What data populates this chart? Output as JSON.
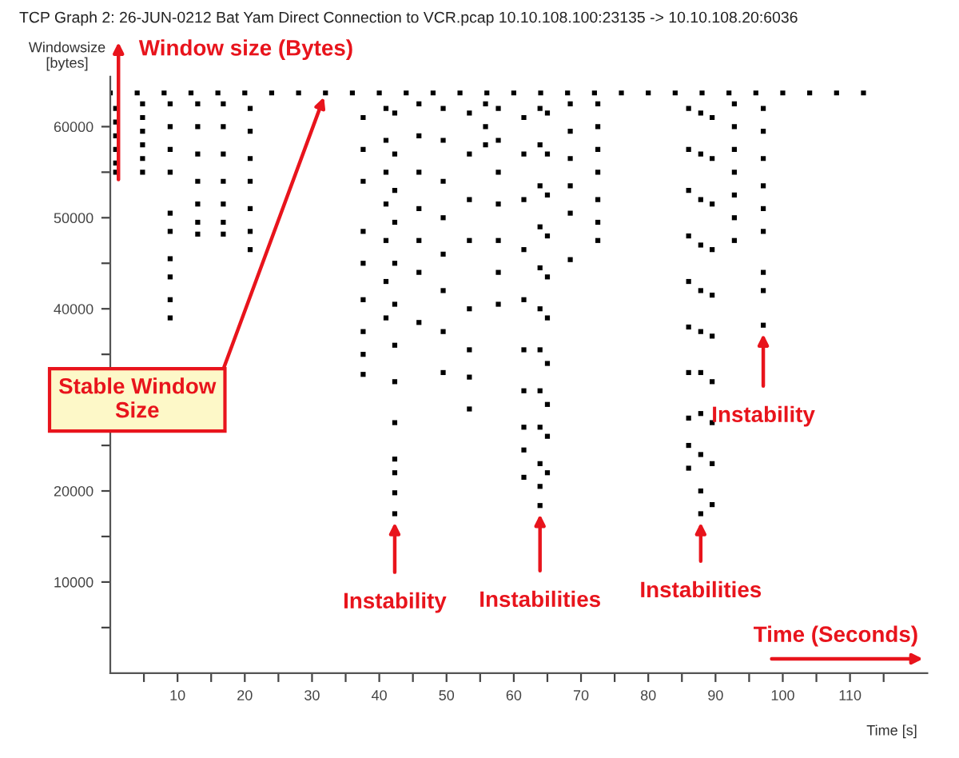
{
  "chart_data": {
    "type": "scatter",
    "title": "TCP Graph 2: 26-JUN-0212 Bat Yam Direct Connection to VCR.pcap 10.10.108.100:23135 -> 10.10.108.20:6036",
    "xlabel": "Time [s]",
    "ylabel": "Windowsize\n[bytes]",
    "series": [
      {
        "color": "#000000",
        "x": [
          0,
          4,
          8,
          12,
          16,
          20,
          24,
          28,
          32,
          36,
          40,
          44,
          48,
          52,
          56,
          60,
          64,
          68,
          72,
          76,
          80,
          84,
          88,
          92,
          96,
          100,
          104,
          108,
          112,
          0.8,
          0.8,
          0.8,
          0.8,
          0.8,
          0.8,
          4.8,
          4.8,
          4.8,
          4.8,
          4.8,
          4.8,
          8.9,
          8.9,
          8.9,
          8.9,
          8.9,
          8.9,
          8.9,
          8.9,
          8.9,
          8.9,
          13,
          13,
          13,
          13,
          13,
          13,
          13,
          16.8,
          16.8,
          16.8,
          16.8,
          16.8,
          16.8,
          16.8,
          20.8,
          20.8,
          20.8,
          20.8,
          20.8,
          20.8,
          20.8,
          37.6,
          37.6,
          37.6,
          37.6,
          37.6,
          37.6,
          37.6,
          37.6,
          37.6,
          41,
          41,
          41,
          41,
          41,
          41,
          41,
          42.3,
          42.3,
          42.3,
          42.3,
          42.3,
          42.3,
          42.3,
          42.3,
          42.3,
          42.3,
          42.3,
          42.3,
          42.3,
          45.9,
          45.9,
          45.9,
          45.9,
          45.9,
          45.9,
          45.9,
          49.5,
          49.5,
          49.5,
          49.5,
          49.5,
          49.5,
          49.5,
          49.5,
          53.4,
          53.4,
          53.4,
          53.4,
          53.4,
          53.4,
          53.4,
          53.4,
          55.8,
          55.8,
          55.8,
          57.7,
          57.7,
          57.7,
          57.7,
          57.7,
          57.7,
          57.7,
          61.5,
          61.5,
          61.5,
          61.5,
          61.5,
          61.5,
          61.5,
          61.5,
          61.5,
          61.5,
          63.9,
          63.9,
          63.9,
          63.9,
          63.9,
          63.9,
          63.9,
          63.9,
          63.9,
          63.9,
          63.9,
          63.9,
          65,
          65,
          65,
          65,
          65,
          65,
          65,
          65,
          65,
          65,
          68.4,
          68.4,
          68.4,
          68.4,
          68.4,
          68.4,
          72.5,
          72.5,
          72.5,
          72.5,
          72.5,
          72.5,
          72.5,
          86,
          86,
          86,
          86,
          86,
          86,
          86,
          86,
          86,
          86,
          87.8,
          87.8,
          87.8,
          87.8,
          87.8,
          87.8,
          87.8,
          87.8,
          87.8,
          87.8,
          87.8,
          89.5,
          89.5,
          89.5,
          89.5,
          89.5,
          89.5,
          89.5,
          89.5,
          89.5,
          89.5,
          92.8,
          92.8,
          92.8,
          92.8,
          92.8,
          92.8,
          92.8,
          97.1,
          97.1,
          97.1,
          97.1,
          97.1,
          97.1,
          97.1,
          97.1,
          97.1
        ],
        "values": [
          63700,
          63700,
          63700,
          63700,
          63700,
          63700,
          63700,
          63700,
          63700,
          63700,
          63700,
          63700,
          63700,
          63700,
          63700,
          63700,
          63700,
          63700,
          63700,
          63700,
          63700,
          63700,
          63700,
          63700,
          63700,
          63700,
          63700,
          63700,
          63700,
          62000,
          60500,
          59000,
          57500,
          56000,
          55000,
          62500,
          61000,
          59500,
          58000,
          56500,
          55000,
          62500,
          60000,
          57500,
          55000,
          50500,
          48500,
          45500,
          43500,
          41000,
          39000,
          62500,
          60000,
          57000,
          54000,
          51500,
          49500,
          48200,
          62500,
          60000,
          57000,
          54000,
          51500,
          49500,
          48200,
          62000,
          59500,
          56500,
          54000,
          51000,
          48500,
          46500,
          61000,
          57500,
          54000,
          48500,
          45000,
          41000,
          37500,
          35000,
          32800,
          62000,
          58500,
          55000,
          51500,
          47500,
          43000,
          39000,
          61500,
          57000,
          53000,
          49500,
          45000,
          40500,
          36000,
          32000,
          27500,
          23500,
          22000,
          19800,
          17500,
          62500,
          59000,
          55000,
          51000,
          47500,
          44000,
          38500,
          62000,
          58500,
          54000,
          50000,
          46000,
          42000,
          37500,
          33000,
          61500,
          57000,
          52000,
          47500,
          40000,
          35500,
          32500,
          29000,
          62500,
          60000,
          58000,
          62000,
          58500,
          55000,
          51500,
          47500,
          44000,
          40500,
          61000,
          57000,
          52000,
          46500,
          41000,
          35500,
          31000,
          27000,
          24500,
          21500,
          62000,
          58000,
          53500,
          49000,
          44500,
          40000,
          35500,
          31000,
          27000,
          23000,
          20500,
          18400,
          61500,
          57000,
          52500,
          48000,
          43500,
          39000,
          34000,
          29500,
          26000,
          22000,
          62500,
          59500,
          56500,
          53500,
          50500,
          45400,
          62500,
          60000,
          57500,
          55000,
          52000,
          49500,
          47500,
          62000,
          57500,
          53000,
          48000,
          43000,
          38000,
          33000,
          28000,
          25000,
          22500,
          61500,
          57000,
          52000,
          47000,
          42000,
          37500,
          33000,
          28500,
          24000,
          20000,
          17500,
          61000,
          56500,
          51500,
          46500,
          41500,
          37000,
          32000,
          27500,
          23000,
          18500,
          62500,
          60000,
          57500,
          55000,
          52500,
          50000,
          47500,
          62000,
          59500,
          56500,
          53500,
          51000,
          48500,
          44000,
          42000,
          38200
        ]
      }
    ],
    "marker": "square",
    "xlim": [
      0,
      121.5
    ],
    "ylim": [
      0,
      65500
    ],
    "xticks": [
      {
        "value": 5,
        "label": null
      },
      10,
      {
        "value": 15,
        "label": null
      },
      20,
      {
        "value": 25,
        "label": null
      },
      30,
      {
        "value": 35,
        "label": null
      },
      40,
      {
        "value": 45,
        "label": null
      },
      50,
      {
        "value": 55,
        "label": null
      },
      60,
      {
        "value": 65,
        "label": null
      },
      70,
      {
        "value": 75,
        "label": null
      },
      80,
      {
        "value": 85,
        "label": null
      },
      90,
      {
        "value": 95,
        "label": null
      },
      100,
      {
        "value": 105,
        "label": null
      },
      110,
      {
        "value": 115,
        "label": null
      }
    ],
    "yticks": [
      {
        "value": 5000,
        "label": null
      },
      10000,
      {
        "value": 15000,
        "label": null
      },
      20000,
      {
        "value": 25000,
        "label": null
      },
      {
        "value": 30000,
        "label": null
      },
      {
        "value": 35000,
        "label": null
      },
      40000,
      {
        "value": 45000,
        "label": null
      },
      50000,
      {
        "value": 55000,
        "label": null
      },
      60000
    ],
    "grid": false,
    "legend": false,
    "annotations": [
      "Window size (Bytes)",
      {
        "text": "Stable Window Size",
        "x": 32,
        "y": 63700
      },
      {
        "text": "Instability",
        "x": 42.3,
        "y": 17500
      },
      {
        "text": "Instabilities",
        "x": 63.9,
        "y": 18400
      },
      {
        "text": "Instabilities",
        "x": 87.8,
        "y": 17500
      },
      {
        "text": "Instability",
        "x": 97.1,
        "y": 38200
      },
      "Time (Seconds)"
    ]
  }
}
